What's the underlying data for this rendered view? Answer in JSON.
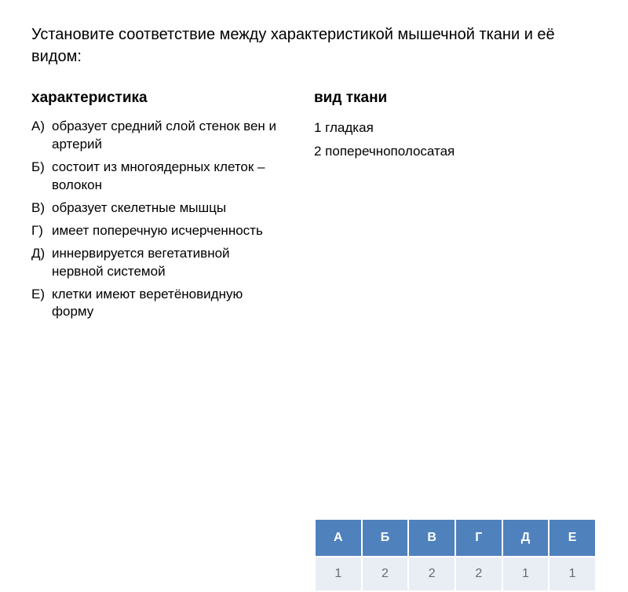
{
  "title": "Установите соответствие между характеристикой мышечной ткани и её видом:",
  "left": {
    "header": "характеристика",
    "items": [
      {
        "label": "А)",
        "text": "образует средний слой стенок вен и артерий"
      },
      {
        "label": "Б)",
        "text": "состоит из многоядерных клеток –волокон"
      },
      {
        "label": "В)",
        "text": "образует скелетные мышцы"
      },
      {
        "label": "Г)",
        "text": "имеет поперечную исчерченность"
      },
      {
        "label": "Д)",
        "text": "иннервируется вегетативной нервной системой"
      },
      {
        "label": "Е)",
        "text": "клетки имеют веретёновидную форму"
      }
    ]
  },
  "right": {
    "header": "вид ткани",
    "options": [
      "1 гладкая",
      "2 поперечнополосатая"
    ]
  },
  "answers": {
    "headers": [
      "А",
      "Б",
      "В",
      "Г",
      "Д",
      "Е"
    ],
    "values": [
      "1",
      "2",
      "2",
      "2",
      "1",
      "1"
    ],
    "header_bg": "#4f81bd",
    "header_fg": "#ffffff",
    "cell_bg": "#e9edf4",
    "cell_fg": "#6b6b6b"
  }
}
